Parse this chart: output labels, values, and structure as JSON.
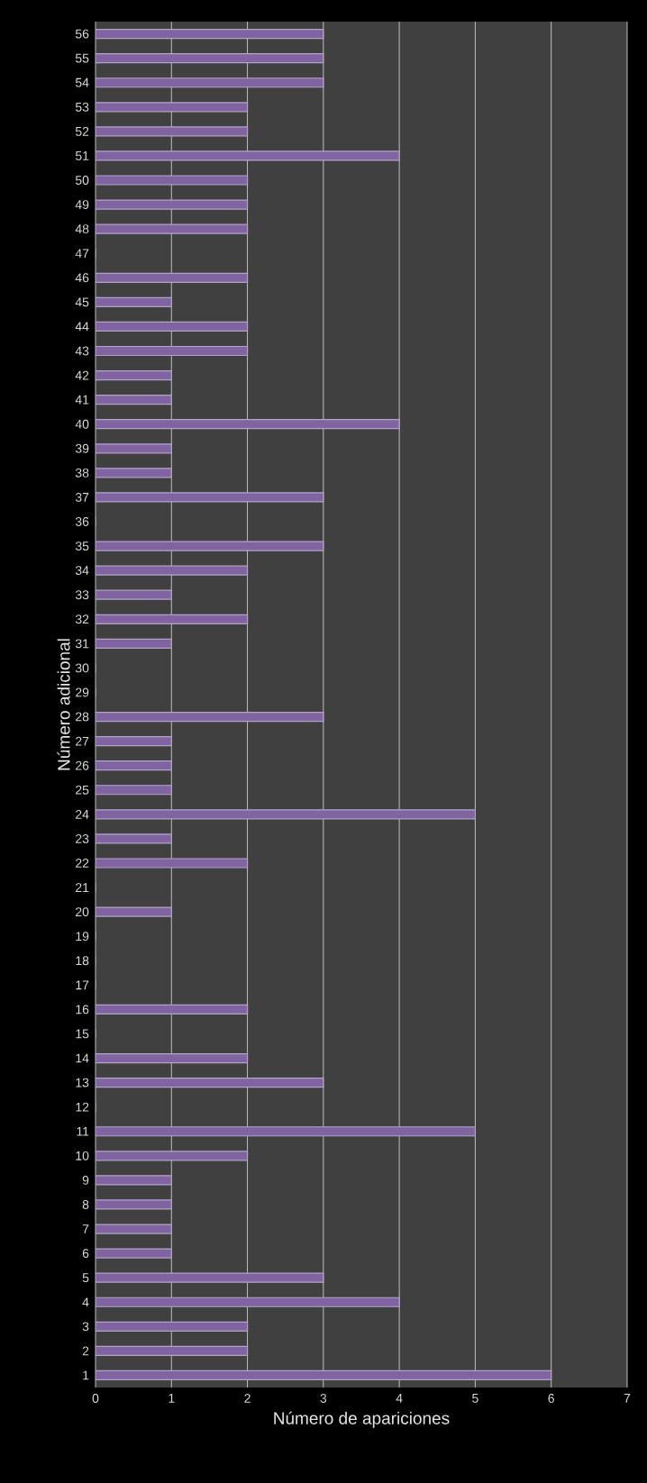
{
  "chart_data": {
    "type": "bar",
    "orientation": "horizontal",
    "categories": [
      "56",
      "55",
      "54",
      "53",
      "52",
      "51",
      "50",
      "49",
      "48",
      "47",
      "46",
      "45",
      "44",
      "43",
      "42",
      "41",
      "40",
      "39",
      "38",
      "37",
      "36",
      "35",
      "34",
      "33",
      "32",
      "31",
      "30",
      "29",
      "28",
      "27",
      "26",
      "25",
      "24",
      "23",
      "22",
      "21",
      "20",
      "19",
      "18",
      "17",
      "16",
      "15",
      "14",
      "13",
      "12",
      "11",
      "10",
      "9",
      "8",
      "7",
      "6",
      "5",
      "4",
      "3",
      "2",
      "1"
    ],
    "values": [
      3,
      3,
      3,
      2,
      2,
      4,
      2,
      2,
      2,
      0,
      2,
      1,
      2,
      2,
      1,
      1,
      4,
      1,
      1,
      3,
      0,
      3,
      2,
      1,
      2,
      1,
      0,
      0,
      3,
      1,
      1,
      1,
      5,
      1,
      2,
      0,
      1,
      0,
      0,
      0,
      2,
      0,
      2,
      3,
      0,
      5,
      2,
      1,
      1,
      1,
      1,
      3,
      4,
      2,
      2,
      6
    ],
    "color": "#8064a2",
    "xlim": [
      0,
      7
    ],
    "xticks": [
      0,
      1,
      2,
      3,
      4,
      5,
      6,
      7
    ],
    "grid": "x",
    "xlabel": "Número de apariciones",
    "ylabel": "Número adicional"
  }
}
